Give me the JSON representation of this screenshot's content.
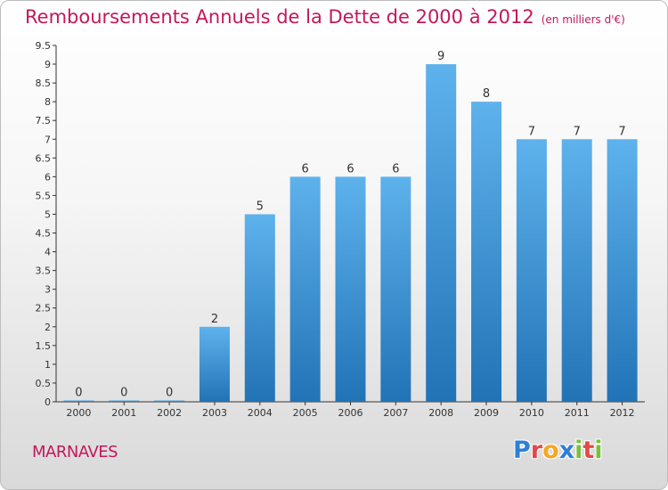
{
  "title": "Remboursements Annuels de la Dette de 2000 à 2012",
  "unit": "(en milliers d'€)",
  "commune": "MARNAVES",
  "logo": [
    "P",
    "r",
    "o",
    "x",
    "i",
    "t",
    "i"
  ],
  "colors": {
    "title": "#c2185b",
    "bar_top": "#5eb2ec",
    "bar_bottom": "#2273b6",
    "axis": "#333333",
    "grid": "#cccccc"
  },
  "chart_data": {
    "type": "bar",
    "title": "Remboursements Annuels de la Dette de 2000 à 2012",
    "xlabel": "",
    "ylabel": "",
    "ylim": [
      0,
      9.5
    ],
    "yticks": [
      "0",
      "0.5",
      "1",
      "1.5",
      "2",
      "2.5",
      "3",
      "3.5",
      "4",
      "4.5",
      "5",
      "5.5",
      "6",
      "6.5",
      "7",
      "7.5",
      "8",
      "8.5",
      "9",
      "9.5"
    ],
    "grid": false,
    "categories": [
      "2000",
      "2001",
      "2002",
      "2003",
      "2004",
      "2005",
      "2006",
      "2007",
      "2008",
      "2009",
      "2010",
      "2011",
      "2012"
    ],
    "values": [
      0,
      0,
      0,
      2,
      5,
      6,
      6,
      6,
      9,
      8,
      7,
      7,
      7
    ],
    "labels": [
      "0",
      "0",
      "0",
      "2",
      "5",
      "6",
      "6",
      "6",
      "9",
      "8",
      "7",
      "7",
      "7"
    ]
  }
}
